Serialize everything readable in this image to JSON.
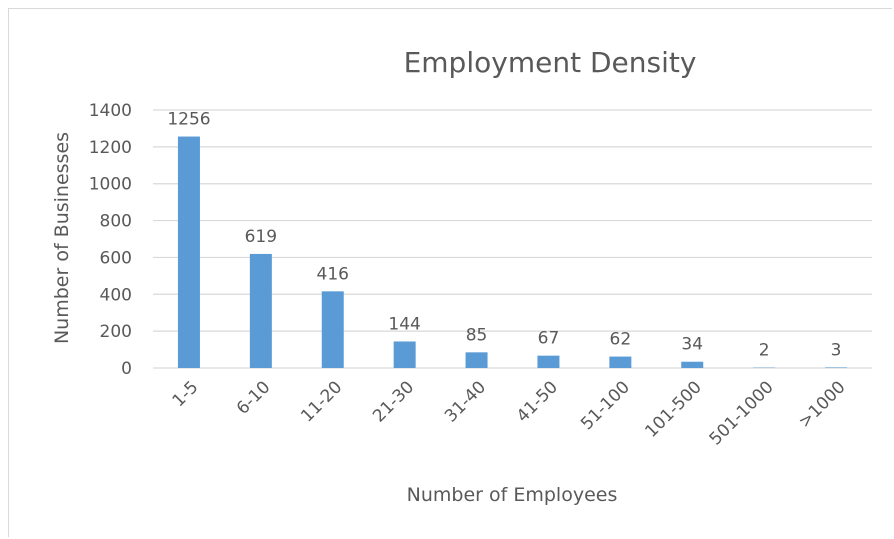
{
  "chart_data": {
    "type": "bar",
    "title": "Employment Density",
    "xlabel": "Number of Employees",
    "ylabel": "Number of Businesses",
    "categories": [
      "1-5",
      "6-10",
      "11-20",
      "21-30",
      "31-40",
      "41-50",
      "51-100",
      "101-500",
      "501-1000",
      ">1000"
    ],
    "values": [
      1256,
      619,
      416,
      144,
      85,
      67,
      62,
      34,
      2,
      3
    ],
    "ylim": [
      0,
      1400
    ],
    "yticks": [
      0,
      200,
      400,
      600,
      800,
      1000,
      1200,
      1400
    ],
    "grid": true,
    "legend": "none",
    "colors": {
      "bar": "#5b9bd5",
      "grid": "#d9d9d9",
      "text": "#595959"
    }
  }
}
